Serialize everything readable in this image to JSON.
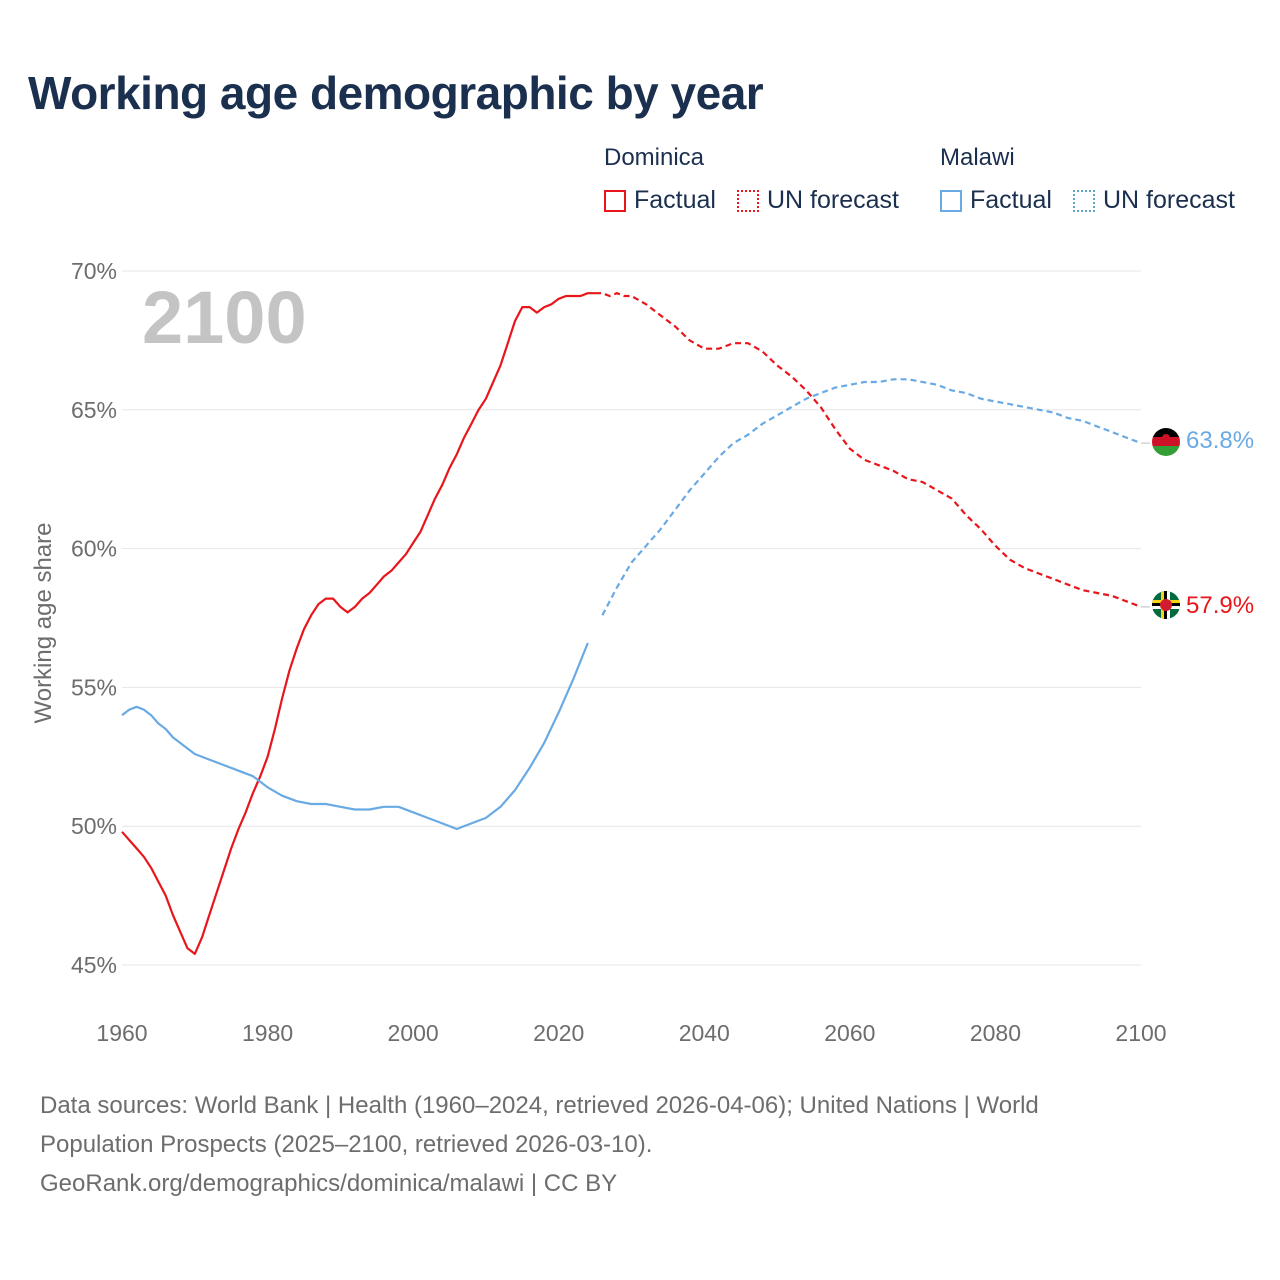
{
  "title": "Working age demographic by year",
  "legend": {
    "groups": [
      {
        "country": "Dominica",
        "factual": "Factual",
        "forecast": "UN forecast",
        "color": "#e8161b"
      },
      {
        "country": "Malawi",
        "factual": "Factual",
        "forecast": "UN forecast",
        "color": "#6aaae4",
        "forecast_color": "#5ea7c8"
      }
    ]
  },
  "footer": {
    "line1": "Data sources: World Bank | Health (1960–2024, retrieved 2026-04-06); United Nations | World",
    "line2": "Population Prospects (2025–2100, retrieved 2026-03-10).",
    "line3": "GeoRank.org/demographics/dominica/malawi | CC BY"
  },
  "chart_data": {
    "type": "line",
    "title": "Working age demographic by year",
    "xlabel": "",
    "ylabel": "Working age share",
    "xlim": [
      1960,
      2100
    ],
    "ylim": [
      45,
      70
    ],
    "x_ticks": [
      1960,
      1980,
      2000,
      2020,
      2040,
      2060,
      2080,
      2100
    ],
    "y_ticks": [
      45,
      50,
      55,
      60,
      65,
      70
    ],
    "y_tick_labels": [
      "45%",
      "50%",
      "55%",
      "60%",
      "65%",
      "70%"
    ],
    "year_watermark": "2100",
    "grid": true,
    "forecast_start": 2025,
    "series": [
      {
        "name": "Dominica",
        "color": "#e8161b",
        "end_label": "57.9%",
        "flag": "dominica-flag-icon",
        "points": [
          [
            1960,
            49.8
          ],
          [
            1961,
            49.5
          ],
          [
            1962,
            49.2
          ],
          [
            1963,
            48.9
          ],
          [
            1964,
            48.5
          ],
          [
            1965,
            48.0
          ],
          [
            1966,
            47.5
          ],
          [
            1967,
            46.8
          ],
          [
            1968,
            46.2
          ],
          [
            1969,
            45.6
          ],
          [
            1970,
            45.4
          ],
          [
            1971,
            46.0
          ],
          [
            1972,
            46.8
          ],
          [
            1973,
            47.6
          ],
          [
            1974,
            48.4
          ],
          [
            1975,
            49.2
          ],
          [
            1976,
            49.9
          ],
          [
            1977,
            50.5
          ],
          [
            1978,
            51.2
          ],
          [
            1979,
            51.8
          ],
          [
            1980,
            52.5
          ],
          [
            1981,
            53.5
          ],
          [
            1982,
            54.6
          ],
          [
            1983,
            55.6
          ],
          [
            1984,
            56.4
          ],
          [
            1985,
            57.1
          ],
          [
            1986,
            57.6
          ],
          [
            1987,
            58.0
          ],
          [
            1988,
            58.2
          ],
          [
            1989,
            58.2
          ],
          [
            1990,
            57.9
          ],
          [
            1991,
            57.7
          ],
          [
            1992,
            57.9
          ],
          [
            1993,
            58.2
          ],
          [
            1994,
            58.4
          ],
          [
            1995,
            58.7
          ],
          [
            1996,
            59.0
          ],
          [
            1997,
            59.2
          ],
          [
            1998,
            59.5
          ],
          [
            1999,
            59.8
          ],
          [
            2000,
            60.2
          ],
          [
            2001,
            60.6
          ],
          [
            2002,
            61.2
          ],
          [
            2003,
            61.8
          ],
          [
            2004,
            62.3
          ],
          [
            2005,
            62.9
          ],
          [
            2006,
            63.4
          ],
          [
            2007,
            64.0
          ],
          [
            2008,
            64.5
          ],
          [
            2009,
            65.0
          ],
          [
            2010,
            65.4
          ],
          [
            2011,
            66.0
          ],
          [
            2012,
            66.6
          ],
          [
            2013,
            67.4
          ],
          [
            2014,
            68.2
          ],
          [
            2015,
            68.7
          ],
          [
            2016,
            68.7
          ],
          [
            2017,
            68.5
          ],
          [
            2018,
            68.7
          ],
          [
            2019,
            68.8
          ],
          [
            2020,
            69.0
          ],
          [
            2021,
            69.1
          ],
          [
            2022,
            69.1
          ],
          [
            2023,
            69.1
          ],
          [
            2024,
            69.2
          ],
          [
            2025,
            69.2
          ],
          [
            2026,
            69.2
          ],
          [
            2027,
            69.1
          ],
          [
            2028,
            69.2
          ],
          [
            2029,
            69.1
          ],
          [
            2030,
            69.1
          ],
          [
            2032,
            68.8
          ],
          [
            2034,
            68.4
          ],
          [
            2036,
            68.0
          ],
          [
            2038,
            67.5
          ],
          [
            2040,
            67.2
          ],
          [
            2042,
            67.2
          ],
          [
            2044,
            67.4
          ],
          [
            2046,
            67.4
          ],
          [
            2048,
            67.1
          ],
          [
            2050,
            66.6
          ],
          [
            2052,
            66.2
          ],
          [
            2054,
            65.7
          ],
          [
            2056,
            65.1
          ],
          [
            2058,
            64.3
          ],
          [
            2060,
            63.6
          ],
          [
            2062,
            63.2
          ],
          [
            2064,
            63.0
          ],
          [
            2066,
            62.8
          ],
          [
            2068,
            62.5
          ],
          [
            2070,
            62.4
          ],
          [
            2072,
            62.1
          ],
          [
            2074,
            61.8
          ],
          [
            2076,
            61.2
          ],
          [
            2078,
            60.7
          ],
          [
            2080,
            60.1
          ],
          [
            2082,
            59.6
          ],
          [
            2084,
            59.3
          ],
          [
            2086,
            59.1
          ],
          [
            2088,
            58.9
          ],
          [
            2090,
            58.7
          ],
          [
            2092,
            58.5
          ],
          [
            2094,
            58.4
          ],
          [
            2096,
            58.3
          ],
          [
            2098,
            58.1
          ],
          [
            2100,
            57.9
          ]
        ]
      },
      {
        "name": "Malawi",
        "color": "#6aaae4",
        "end_label": "63.8%",
        "flag": "malawi-flag-icon",
        "points": [
          [
            1960,
            54.0
          ],
          [
            1961,
            54.2
          ],
          [
            1962,
            54.3
          ],
          [
            1963,
            54.2
          ],
          [
            1964,
            54.0
          ],
          [
            1965,
            53.7
          ],
          [
            1966,
            53.5
          ],
          [
            1967,
            53.2
          ],
          [
            1968,
            53.0
          ],
          [
            1969,
            52.8
          ],
          [
            1970,
            52.6
          ],
          [
            1972,
            52.4
          ],
          [
            1974,
            52.2
          ],
          [
            1976,
            52.0
          ],
          [
            1978,
            51.8
          ],
          [
            1980,
            51.4
          ],
          [
            1982,
            51.1
          ],
          [
            1984,
            50.9
          ],
          [
            1986,
            50.8
          ],
          [
            1988,
            50.8
          ],
          [
            1990,
            50.7
          ],
          [
            1992,
            50.6
          ],
          [
            1994,
            50.6
          ],
          [
            1996,
            50.7
          ],
          [
            1998,
            50.7
          ],
          [
            2000,
            50.5
          ],
          [
            2002,
            50.3
          ],
          [
            2004,
            50.1
          ],
          [
            2006,
            49.9
          ],
          [
            2008,
            50.1
          ],
          [
            2010,
            50.3
          ],
          [
            2012,
            50.7
          ],
          [
            2014,
            51.3
          ],
          [
            2016,
            52.1
          ],
          [
            2018,
            53.0
          ],
          [
            2020,
            54.1
          ],
          [
            2022,
            55.3
          ],
          [
            2024,
            56.6
          ],
          [
            2026,
            57.6
          ],
          [
            2028,
            58.6
          ],
          [
            2030,
            59.5
          ],
          [
            2032,
            60.1
          ],
          [
            2034,
            60.7
          ],
          [
            2036,
            61.4
          ],
          [
            2038,
            62.1
          ],
          [
            2040,
            62.7
          ],
          [
            2042,
            63.3
          ],
          [
            2044,
            63.8
          ],
          [
            2046,
            64.1
          ],
          [
            2048,
            64.5
          ],
          [
            2050,
            64.8
          ],
          [
            2052,
            65.1
          ],
          [
            2054,
            65.4
          ],
          [
            2056,
            65.6
          ],
          [
            2058,
            65.8
          ],
          [
            2060,
            65.9
          ],
          [
            2062,
            66.0
          ],
          [
            2064,
            66.0
          ],
          [
            2066,
            66.1
          ],
          [
            2068,
            66.1
          ],
          [
            2070,
            66.0
          ],
          [
            2072,
            65.9
          ],
          [
            2074,
            65.7
          ],
          [
            2076,
            65.6
          ],
          [
            2078,
            65.4
          ],
          [
            2080,
            65.3
          ],
          [
            2082,
            65.2
          ],
          [
            2084,
            65.1
          ],
          [
            2086,
            65.0
          ],
          [
            2088,
            64.9
          ],
          [
            2090,
            64.7
          ],
          [
            2092,
            64.6
          ],
          [
            2094,
            64.4
          ],
          [
            2096,
            64.2
          ],
          [
            2098,
            64.0
          ],
          [
            2100,
            63.8
          ]
        ]
      }
    ]
  }
}
